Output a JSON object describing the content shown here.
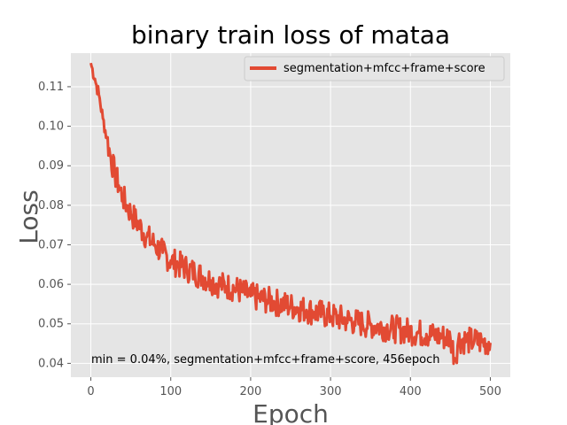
{
  "chart_data": {
    "type": "line",
    "title": "binary train loss of mataa",
    "xlabel": "Epoch",
    "ylabel": "Loss",
    "xlim": [
      -25,
      525
    ],
    "ylim": [
      0.0365,
      0.1185
    ],
    "xticks": [
      0,
      100,
      200,
      300,
      400,
      500
    ],
    "xtick_labels": [
      "0",
      "100",
      "200",
      "300",
      "400",
      "500"
    ],
    "yticks": [
      0.04,
      0.05,
      0.06,
      0.07,
      0.08,
      0.09,
      0.1,
      0.11
    ],
    "ytick_labels": [
      "0.04",
      "0.05",
      "0.06",
      "0.07",
      "0.08",
      "0.09",
      "0.10",
      "0.11"
    ],
    "grid": true,
    "legend_position": "top-right",
    "annotation": "min  = 0.04%, segmentation+mfcc+frame+score, 456epoch",
    "series": [
      {
        "name": "segmentation+mfcc+frame+score",
        "color": "#E24A33",
        "x": [
          0,
          5,
          10,
          15,
          20,
          25,
          30,
          35,
          40,
          45,
          50,
          60,
          70,
          80,
          90,
          100,
          110,
          120,
          130,
          140,
          150,
          160,
          170,
          180,
          190,
          200,
          210,
          220,
          230,
          240,
          250,
          260,
          270,
          280,
          290,
          300,
          310,
          320,
          330,
          340,
          350,
          360,
          370,
          380,
          390,
          400,
          410,
          420,
          430,
          440,
          450,
          456,
          460,
          470,
          480,
          490,
          500
        ],
        "y": [
          0.116,
          0.112,
          0.108,
          0.102,
          0.097,
          0.092,
          0.088,
          0.085,
          0.082,
          0.08,
          0.078,
          0.075,
          0.072,
          0.07,
          0.068,
          0.066,
          0.065,
          0.064,
          0.063,
          0.062,
          0.061,
          0.06,
          0.0595,
          0.059,
          0.058,
          0.057,
          0.0565,
          0.056,
          0.0555,
          0.055,
          0.0545,
          0.054,
          0.0535,
          0.053,
          0.0525,
          0.052,
          0.0515,
          0.051,
          0.0505,
          0.05,
          0.0497,
          0.0494,
          0.049,
          0.0487,
          0.0484,
          0.048,
          0.0477,
          0.0474,
          0.047,
          0.0467,
          0.0464,
          0.0412,
          0.046,
          0.0458,
          0.0456,
          0.0454,
          0.0452
        ],
        "noise_amplitude": 0.0035
      }
    ]
  },
  "colors": {
    "plot_background": "#E5E5E5",
    "grid": "#FFFFFF",
    "series": "#E24A33"
  }
}
